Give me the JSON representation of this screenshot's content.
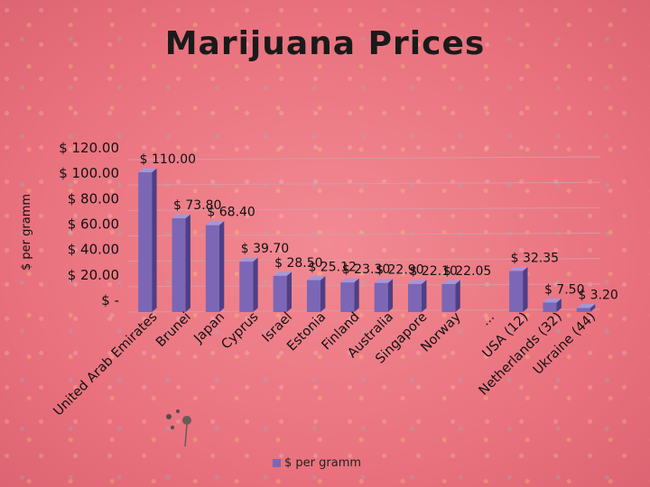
{
  "chart_data": {
    "type": "bar",
    "title": "Marijuana Prices",
    "ylabel": "$ per gramm",
    "xlabel": "",
    "categories": [
      "United Arab Emirates",
      "Brunei",
      "Japan",
      "Cyprus",
      "Israel",
      "Estonia",
      "Finland",
      "Australia",
      "Singapore",
      "Norway",
      "...",
      "USA (12)",
      "Netherlands (32)",
      "Ukraine (44)"
    ],
    "series": [
      {
        "name": "$ per gramm",
        "values": [
          110,
          73.8,
          68.4,
          39.7,
          28.5,
          25.12,
          23.3,
          22.9,
          22.1,
          22.05,
          null,
          32.35,
          7.5,
          3.2
        ],
        "labels": [
          "$ 110.00",
          "$ 73.80",
          "$ 68.40",
          "$ 39.70",
          "$ 28.50",
          "$ 25.12",
          "$ 23.30",
          "$ 22.90",
          "$ 22.10",
          "$ 22.05",
          "",
          "$ 32.35",
          "$ 7.50",
          "$ 3.20"
        ]
      }
    ],
    "ylim": [
      0,
      120
    ],
    "yticks": [
      0,
      20,
      40,
      60,
      80,
      100,
      120
    ],
    "ytick_labels": [
      "$ -",
      "$ 20.00",
      "$ 40.00",
      "$ 60.00",
      "$ 80.00",
      "$ 100.00",
      "$ 120.00"
    ],
    "legend_position": "bottom",
    "grid": true,
    "colors": {
      "bar_front": "#7b67b5",
      "bar_side": "#4e3f86",
      "bar_top": "#a596d6",
      "grid": "#d99aa3"
    }
  }
}
